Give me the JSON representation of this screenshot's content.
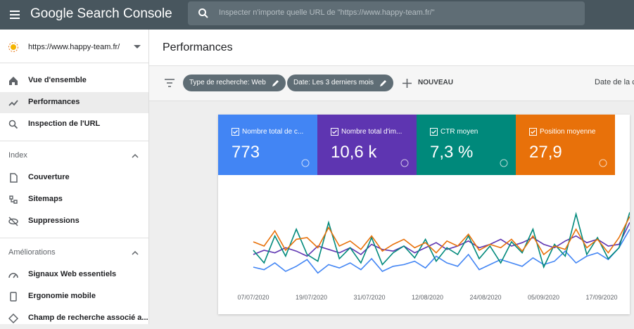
{
  "header": {
    "product": "Google Search Console",
    "search_placeholder": "Inspecter n'importe quelle URL de \"https://www.happy-team.fr/\""
  },
  "sidebar": {
    "property": "https://www.happy-team.fr/",
    "items": [
      "Vue d'ensemble",
      "Performances",
      "Inspection de l'URL"
    ],
    "sections": [
      {
        "title": "Index",
        "items": [
          "Couverture",
          "Sitemaps",
          "Suppressions"
        ]
      },
      {
        "title": "Améliorations",
        "items": [
          "Signaux Web essentiels",
          "Ergonomie mobile",
          "Champ de recherche associé a..."
        ]
      }
    ]
  },
  "page": {
    "title": "Performances",
    "filters": [
      "Type de recherche: Web",
      "Date: Les 3 derniers mois"
    ],
    "new_button": "NOUVEAU",
    "date_label": "Date de la c"
  },
  "metrics": [
    {
      "label": "Nombre total de c...",
      "value": "773",
      "color": "#4285f4"
    },
    {
      "label": "Nombre total d'im...",
      "value": "10,6 k",
      "color": "#5e35b1"
    },
    {
      "label": "CTR moyen",
      "value": "7,3 %",
      "color": "#00897b"
    },
    {
      "label": "Position moyenne",
      "value": "27,9",
      "color": "#e8710a"
    }
  ],
  "chart_data": {
    "type": "line",
    "ylim": [
      0,
      100
    ],
    "xticks": [
      "07/07/2020",
      "19/07/2020",
      "31/07/2020",
      "12/08/2020",
      "24/08/2020",
      "05/09/2020",
      "17/09/2020"
    ],
    "series": [
      {
        "color": "#4285f4",
        "values": [
          25,
          22,
          30,
          20,
          26,
          34,
          18,
          28,
          24,
          30,
          22,
          35,
          20,
          26,
          28,
          32,
          24,
          38,
          30,
          26,
          40,
          22,
          28,
          34,
          30,
          26,
          36,
          28,
          32,
          44,
          30,
          38,
          42,
          34,
          48,
          70
        ]
      },
      {
        "color": "#5e35b1",
        "values": [
          40,
          45,
          42,
          48,
          44,
          38,
          50,
          46,
          42,
          48,
          40,
          52,
          46,
          44,
          50,
          42,
          48,
          54,
          46,
          50,
          56,
          48,
          52,
          58,
          50,
          54,
          60,
          52,
          48,
          56,
          62,
          54,
          58,
          50,
          52,
          78
        ]
      },
      {
        "color": "#00897b",
        "values": [
          45,
          30,
          62,
          38,
          70,
          40,
          32,
          78,
          35,
          48,
          30,
          60,
          28,
          42,
          50,
          36,
          58,
          32,
          48,
          40,
          62,
          35,
          50,
          30,
          55,
          42,
          70,
          25,
          52,
          38,
          88,
          40,
          60,
          35,
          48,
          90
        ]
      },
      {
        "color": "#e8710a",
        "values": [
          55,
          50,
          68,
          45,
          58,
          60,
          48,
          72,
          50,
          56,
          46,
          62,
          44,
          52,
          58,
          48,
          54,
          42,
          56,
          50,
          64,
          45,
          52,
          48,
          58,
          44,
          62,
          40,
          50,
          46,
          70,
          48,
          58,
          42,
          60,
          85
        ]
      }
    ]
  }
}
